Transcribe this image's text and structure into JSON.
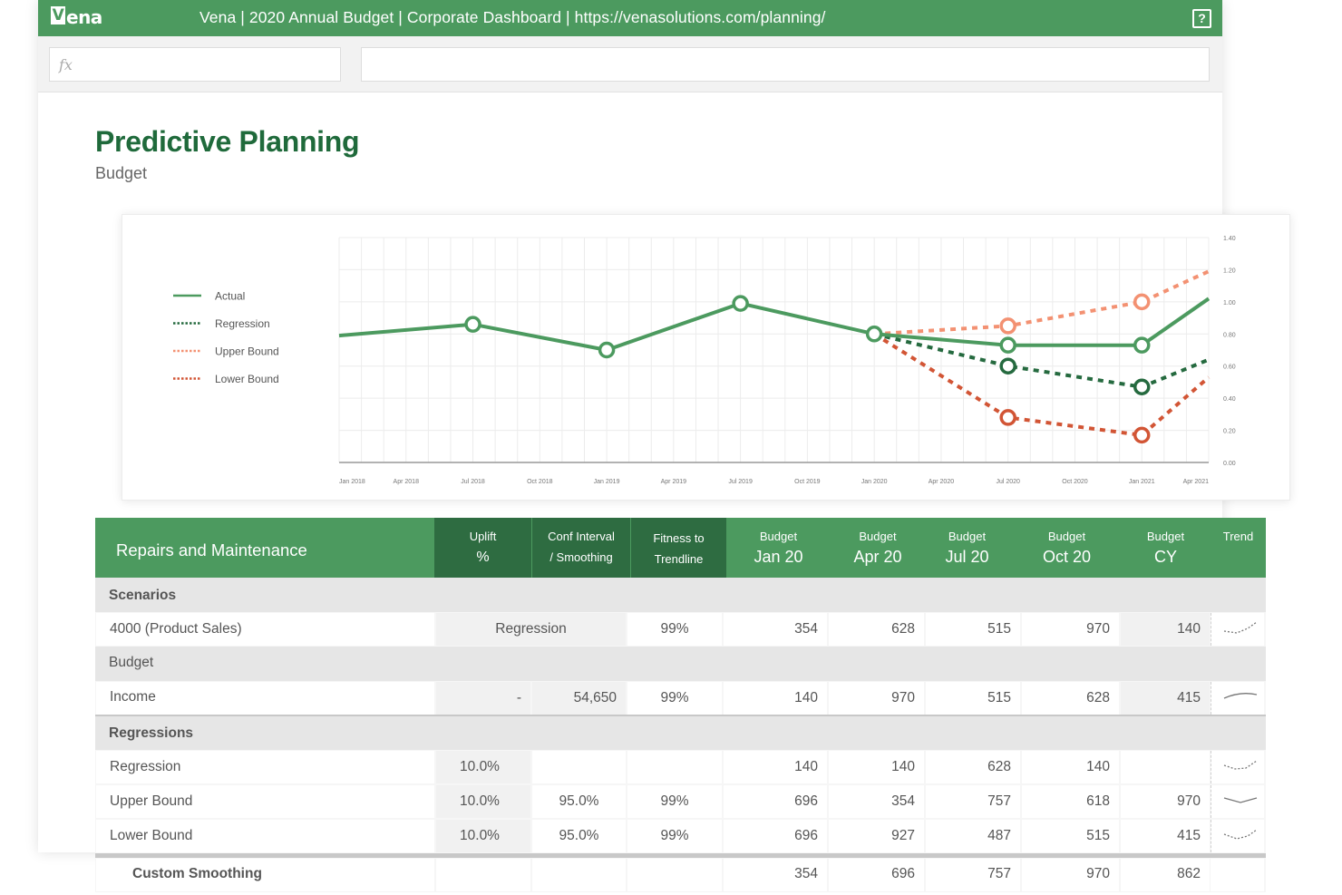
{
  "app": {
    "logo_text": "ena",
    "logo_mark": "V",
    "window_title": "Vena | 2020 Annual Budget | Corporate Dashboard | https://venasolutions.com/planning/",
    "help_icon": "help-icon",
    "fx_label": "fx",
    "formula_value": ""
  },
  "page": {
    "title": "Predictive Planning",
    "subtitle": "Budget"
  },
  "colors": {
    "brand_green": "#4c9a5f",
    "dark_green": "#2e6c41",
    "actual": "#4c9a5f",
    "regression": "#256a3f",
    "upper_bound": "#f39172",
    "lower_bound": "#d25535"
  },
  "chart_data": {
    "type": "line",
    "legend": [
      "Actual",
      "Regression",
      "Upper Bound",
      "Lower Bound"
    ],
    "legend_position": "left",
    "grid": true,
    "x_tick_labels": [
      "Jan 2018",
      "Apr 2018",
      "Jul 2018",
      "Oct 2018",
      "Jan 2019",
      "Apr 2019",
      "Jul 2019",
      "Oct 2019",
      "Jan 2020",
      "Apr 2020",
      "Jul 2020",
      "Oct 2020",
      "Jan 2021",
      "Apr 2021"
    ],
    "y_tick_labels": [
      "0.00",
      "0.20",
      "0.40",
      "0.60",
      "0.80",
      "1.00",
      "1.20",
      "1.40"
    ],
    "ylim": [
      0,
      1.4
    ],
    "y_axis_side": "right",
    "series": [
      {
        "name": "Actual",
        "style": "solid",
        "points": [
          [
            "Jan 2018",
            0.79
          ],
          [
            "Jul 2018",
            0.86
          ],
          [
            "Jan 2019",
            0.7
          ],
          [
            "Jul 2019",
            0.99
          ],
          [
            "Jan 2020",
            0.8
          ],
          [
            "Jul 2020",
            0.73
          ],
          [
            "Jan 2021",
            0.73
          ],
          [
            "Apr 2021",
            1.02
          ]
        ],
        "markers": [
          1,
          2,
          3,
          4,
          5,
          6
        ]
      },
      {
        "name": "Regression",
        "style": "dotted",
        "points": [
          [
            "Jan 2020",
            0.8
          ],
          [
            "Jul 2020",
            0.6
          ],
          [
            "Jan 2021",
            0.47
          ],
          [
            "Apr 2021",
            0.64
          ]
        ],
        "markers": [
          1,
          2
        ]
      },
      {
        "name": "Upper Bound",
        "style": "dotted",
        "points": [
          [
            "Jan 2020",
            0.8
          ],
          [
            "Jul 2020",
            0.85
          ],
          [
            "Jan 2021",
            1.0
          ],
          [
            "Apr 2021",
            1.19
          ]
        ],
        "markers": [
          1,
          2
        ]
      },
      {
        "name": "Lower Bound",
        "style": "dotted",
        "points": [
          [
            "Jan 2020",
            0.8
          ],
          [
            "Jul 2020",
            0.28
          ],
          [
            "Jan 2021",
            0.17
          ],
          [
            "Apr 2021",
            0.53
          ]
        ],
        "markers": [
          1,
          2
        ]
      }
    ]
  },
  "table": {
    "title": "Repairs and Maintenance",
    "columns": [
      {
        "l1": "Uplift",
        "l2": "%",
        "style": "dark"
      },
      {
        "l1": "Conf Interval",
        "l2": "/ Smoothing",
        "style": "dark2"
      },
      {
        "l1": "Fitness to",
        "l2": "Trendline",
        "style": "dark2"
      },
      {
        "l1": "Budget",
        "l2": "Jan 20",
        "style": "big"
      },
      {
        "l1": "Budget",
        "l2": "Apr 20",
        "style": "big"
      },
      {
        "l1": "Budget",
        "l2": "Jul 20",
        "style": "big"
      },
      {
        "l1": "Budget",
        "l2": "Oct 20",
        "style": "big"
      },
      {
        "l1": "Budget",
        "l2": "CY",
        "style": "big"
      },
      {
        "l1": "Trend",
        "l2": "",
        "style": "big"
      }
    ],
    "sections": {
      "scenarios": "Scenarios",
      "budget": "Budget",
      "regressions": "Regressions"
    },
    "rows": {
      "product_sales": {
        "label": "4000 (Product Sales)",
        "method": "Regression",
        "fitness": "99%",
        "jan": "354",
        "apr": "628",
        "jul": "515",
        "oct": "970",
        "cy": "140"
      },
      "income": {
        "label": "Income",
        "uplift": "-",
        "smoothing": "54,650",
        "fitness": "99%",
        "jan": "140",
        "apr": "970",
        "jul": "515",
        "oct": "628",
        "cy": "415"
      },
      "regression": {
        "label": "Regression",
        "uplift": "10.0%",
        "smoothing": "",
        "fitness": "",
        "jan": "140",
        "apr": "140",
        "jul": "628",
        "oct": "140",
        "cy": ""
      },
      "upper_bound": {
        "label": "Upper Bound",
        "uplift": "10.0%",
        "smoothing": "95.0%",
        "fitness": "99%",
        "jan": "696",
        "apr": "354",
        "jul": "757",
        "oct": "618",
        "cy": "970"
      },
      "lower_bound": {
        "label": "Lower Bound",
        "uplift": "10.0%",
        "smoothing": "95.0%",
        "fitness": "99%",
        "jan": "696",
        "apr": "927",
        "jul": "487",
        "oct": "515",
        "cy": "415"
      },
      "custom_smoothing": {
        "label": "Custom Smoothing",
        "jan": "354",
        "apr": "696",
        "jul": "757",
        "oct": "970",
        "cy": "862"
      }
    },
    "trend_icons": {
      "product_sales": "dotted-rising-sparkline-icon",
      "income": "solid-arc-sparkline-icon",
      "regression": "dotted-rising-sparkline-icon",
      "upper_bound": "solid-dip-sparkline-icon",
      "lower_bound": "dotted-rising-sparkline-icon"
    }
  }
}
